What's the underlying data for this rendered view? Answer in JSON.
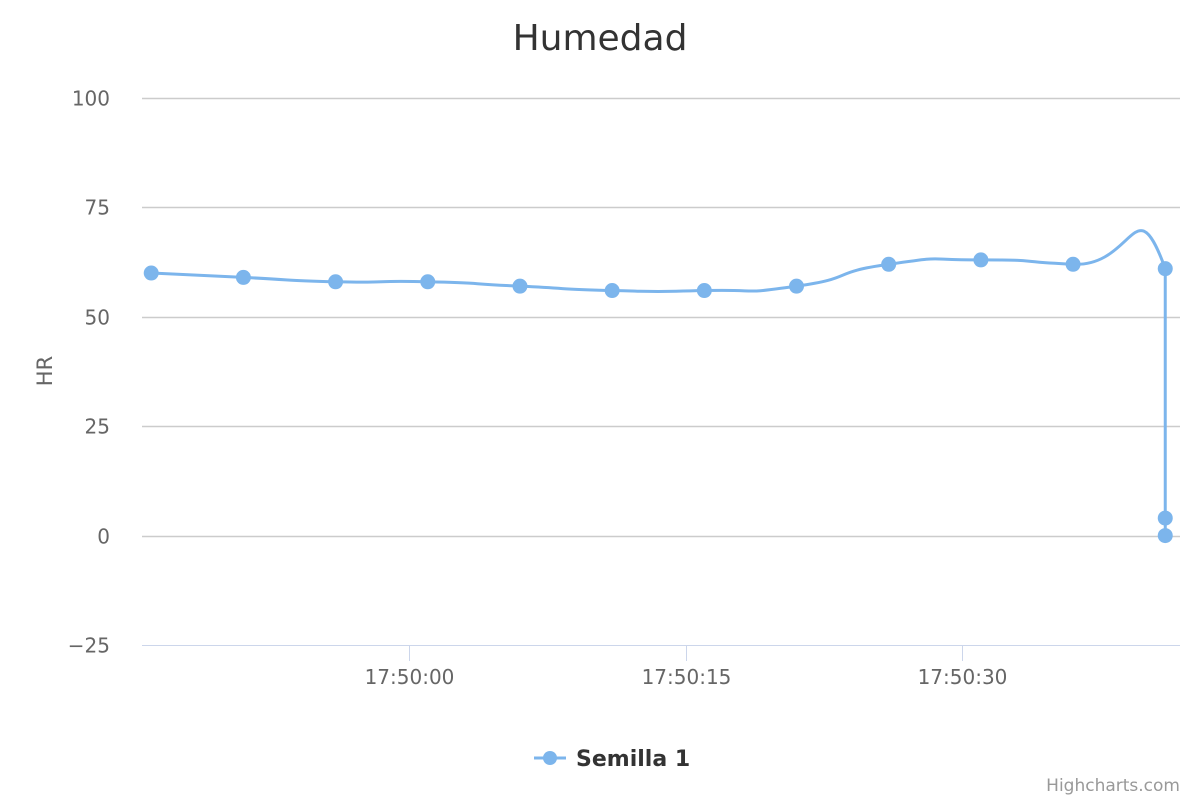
{
  "chart_data": {
    "type": "line",
    "title": "Humedad",
    "ylabel": "HR",
    "xlabel": "",
    "ylim": [
      -25,
      100
    ],
    "yticks": [
      -25,
      0,
      25,
      50,
      75,
      100
    ],
    "xlim": [
      "17:49:45.5",
      "17:50:41.8"
    ],
    "xticks": [
      "17:50:00",
      "17:50:15",
      "17:50:30"
    ],
    "grid": true,
    "legend_position": "bottom-center",
    "series": [
      {
        "name": "Semilla 1",
        "color": "#7cb5ec",
        "points": [
          {
            "x": "17:49:46",
            "y": 60
          },
          {
            "x": "17:49:51",
            "y": 59
          },
          {
            "x": "17:49:56",
            "y": 58
          },
          {
            "x": "17:50:01",
            "y": 58
          },
          {
            "x": "17:50:06",
            "y": 57
          },
          {
            "x": "17:50:11",
            "y": 56
          },
          {
            "x": "17:50:16",
            "y": 56
          },
          {
            "x": "17:50:21",
            "y": 57
          },
          {
            "x": "17:50:26",
            "y": 62
          },
          {
            "x": "17:50:31",
            "y": 63
          },
          {
            "x": "17:50:36",
            "y": 62
          },
          {
            "x": "17:50:41",
            "y": 61
          },
          {
            "x": "17:50:41",
            "y": 4
          },
          {
            "x": "17:50:41",
            "y": 0
          }
        ]
      }
    ]
  },
  "credits": "Highcharts.com"
}
